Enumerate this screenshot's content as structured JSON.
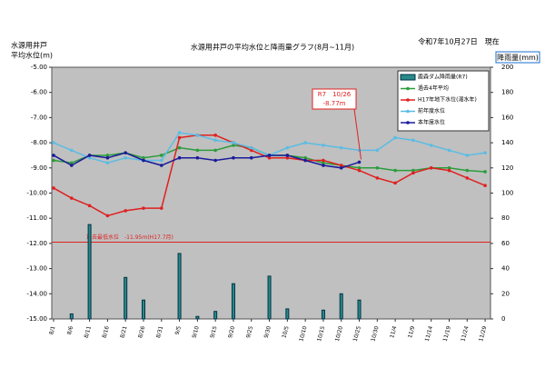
{
  "chart_data": {
    "type": "line_bar",
    "title": "水源用井戸の平均水位と降雨量グラフ(8月~11月)",
    "date_note": "令和7年10月27日　現在",
    "y_label": [
      "水源用井戸",
      "平均水位(m)"
    ],
    "y2_label": "降雨量(mm)",
    "categories": [
      "8/1",
      "8/6",
      "8/11",
      "8/16",
      "8/21",
      "8/26",
      "8/31",
      "9/5",
      "9/10",
      "9/15",
      "9/20",
      "9/25",
      "9/30",
      "10/5",
      "10/10",
      "10/15",
      "10/20",
      "10/25",
      "10/30",
      "11/4",
      "11/9",
      "11/14",
      "11/19",
      "11/24",
      "11/29"
    ],
    "series": [
      {
        "name": "鹿森ダム降雨量(R7)",
        "kind": "bar",
        "axis": "y2",
        "color": "#2a8a8a",
        "values": [
          0,
          4,
          75,
          0,
          33,
          15,
          0,
          52,
          2,
          6,
          28,
          0,
          34,
          8,
          0,
          7,
          20,
          15,
          0,
          0,
          0,
          0,
          0,
          0,
          0
        ]
      },
      {
        "name": "過去4年平均",
        "kind": "line",
        "color": "#2a9d3a",
        "values": [
          -8.7,
          -8.8,
          -8.5,
          -8.5,
          -8.4,
          -8.6,
          -8.5,
          -8.2,
          -8.3,
          -8.3,
          -8.1,
          -8.2,
          -8.5,
          -8.5,
          -8.6,
          -8.8,
          -8.9,
          -9.0,
          -9.0,
          -9.1,
          -9.1,
          -9.0,
          -9.0,
          -9.1,
          -9.15
        ]
      },
      {
        "name": "H17年地下水位(渇水年)",
        "kind": "line",
        "color": "#e02020",
        "values": [
          -9.8,
          -10.2,
          -10.5,
          -10.9,
          -10.7,
          -10.6,
          -10.6,
          -7.8,
          -7.7,
          -7.7,
          -8.0,
          -8.3,
          -8.6,
          -8.6,
          -8.7,
          -8.7,
          -8.9,
          -9.1,
          -9.4,
          -9.6,
          -9.2,
          -9.0,
          -9.1,
          -9.4,
          -9.7
        ]
      },
      {
        "name": "前年度水位",
        "kind": "line",
        "color": "#5bbce4",
        "values": [
          -8.0,
          -8.3,
          -8.6,
          -8.8,
          -8.6,
          -8.7,
          -8.7,
          -7.6,
          -7.7,
          -7.9,
          -8.0,
          -8.2,
          -8.5,
          -8.2,
          -8.0,
          -8.1,
          -8.2,
          -8.3,
          -8.3,
          -7.8,
          -7.9,
          -8.1,
          -8.3,
          -8.5,
          -8.4
        ]
      },
      {
        "name": "本年度水位",
        "kind": "line",
        "color": "#1a1a9a",
        "values": [
          -8.5,
          -8.9,
          -8.5,
          -8.6,
          -8.4,
          -8.7,
          -8.9,
          -8.6,
          -8.6,
          -8.7,
          -8.6,
          -8.6,
          -8.5,
          -8.5,
          -8.7,
          -8.9,
          -9.0,
          -8.77,
          null,
          null,
          null,
          null,
          null,
          null,
          null
        ]
      }
    ],
    "ylim": [
      -15,
      -5
    ],
    "yticks": [
      {
        "value": -5,
        "label": "-5.00"
      },
      {
        "value": -6,
        "label": "-6.00"
      },
      {
        "value": -7,
        "label": "-7.00"
      },
      {
        "value": -8,
        "label": "-8.00"
      },
      {
        "value": -9,
        "label": "-9.00"
      },
      {
        "value": -10,
        "label": "-10.00"
      },
      {
        "value": -11,
        "label": "-11.00"
      },
      {
        "value": -12,
        "label": "-12.00"
      },
      {
        "value": -13,
        "label": "-13.00"
      },
      {
        "value": -14,
        "label": "-14.00"
      },
      {
        "value": -15,
        "label": "-15.00"
      }
    ],
    "y2lim": [
      0,
      200
    ],
    "y2ticks": [
      0,
      20,
      40,
      60,
      80,
      100,
      120,
      140,
      160,
      180,
      200
    ],
    "reference_line": {
      "value": -11.95,
      "label": "過去最低水位　-11.95ｍ(H17.7月)",
      "color": "#e02020"
    },
    "annotation": {
      "text": [
        "R7　10/26",
        "-8.77m"
      ],
      "series": 4,
      "index": 17,
      "color": "#e02020"
    },
    "legend": "top-right"
  }
}
